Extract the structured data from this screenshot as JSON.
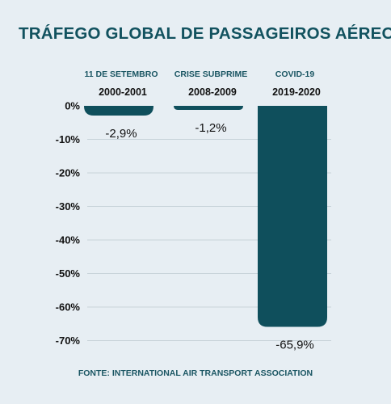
{
  "title": "TRÁFEGO GLOBAL DE PASSAGEIROS AÉREOS",
  "source": "FONTE: INTERNATIONAL AIR TRANSPORT ASSOCIATION",
  "colors": {
    "title": "#12525f",
    "bar": "#0f4f5c",
    "event_label": "#1b5663",
    "source": "#1b5663",
    "grid": "#c9d4da",
    "text": "#111111",
    "background": "#e7eef3"
  },
  "chart_data": {
    "type": "bar",
    "title": "TRÁFEGO GLOBAL DE PASSAGEIROS AÉREOS",
    "categories": [
      "2000-2001",
      "2008-2009",
      "2019-2020"
    ],
    "events": [
      "11 DE SETEMBRO",
      "CRISE SUBPRIME",
      "COVID-19"
    ],
    "values": [
      -2.9,
      -1.2,
      -65.9
    ],
    "value_labels": [
      "-2,9%",
      "-1,2%",
      "-65,9%"
    ],
    "y_ticks": [
      0,
      -10,
      -20,
      -30,
      -40,
      -50,
      -60,
      -70
    ],
    "y_tick_labels": [
      "0%",
      "-10%",
      "-20%",
      "-30%",
      "-40%",
      "-50%",
      "-60%",
      "-70%"
    ],
    "ylim": [
      -70,
      0
    ],
    "xlabel": "",
    "ylabel": "",
    "grid": true,
    "legend": "none"
  }
}
